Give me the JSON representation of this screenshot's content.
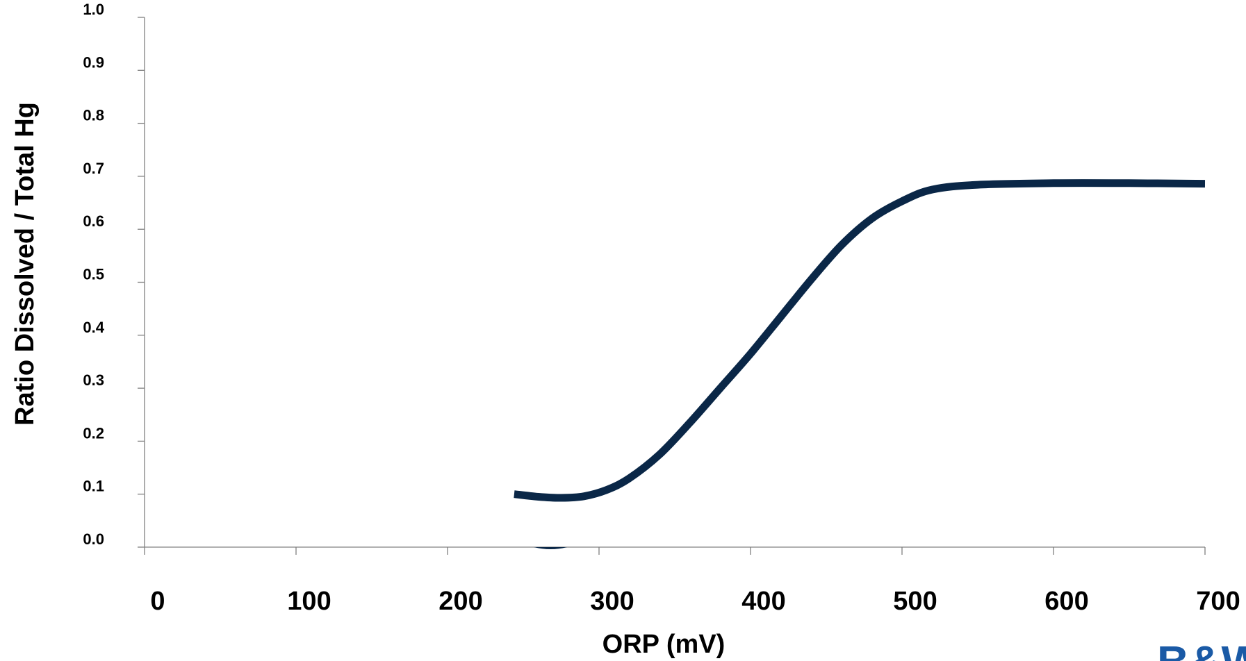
{
  "chart_data": {
    "type": "line",
    "title": "",
    "xlabel": "ORP (mV)",
    "ylabel": "Ratio Dissolved / Total Hg",
    "xlim": [
      0,
      700
    ],
    "ylim": [
      0,
      1.0
    ],
    "x_ticks": [
      "0",
      "100",
      "200",
      "300",
      "400",
      "500",
      "600",
      "700"
    ],
    "y_ticks": [
      "0.0",
      "0.1",
      "0.2",
      "0.3",
      "0.4",
      "0.5",
      "0.6",
      "0.7",
      "0.8",
      "0.9",
      "1.0"
    ],
    "grid": false,
    "legend": "none",
    "series": [
      {
        "color": "#0a2747",
        "x": [
          244,
          260,
          275,
          290,
          305,
          320,
          340,
          360,
          380,
          400,
          420,
          440,
          460,
          480,
          500,
          520,
          550,
          600,
          650,
          700
        ],
        "y": [
          0.1,
          0.095,
          0.093,
          0.096,
          0.108,
          0.13,
          0.175,
          0.235,
          0.3,
          0.365,
          0.435,
          0.505,
          0.57,
          0.62,
          0.653,
          0.675,
          0.684,
          0.687,
          0.687,
          0.686
        ]
      }
    ],
    "annotations": [
      {
        "type": "mark",
        "x": 268,
        "y": 0.0,
        "color": "#0a2747"
      }
    ]
  },
  "logo": {
    "text": "B&W",
    "color": "#1a5aa6"
  }
}
